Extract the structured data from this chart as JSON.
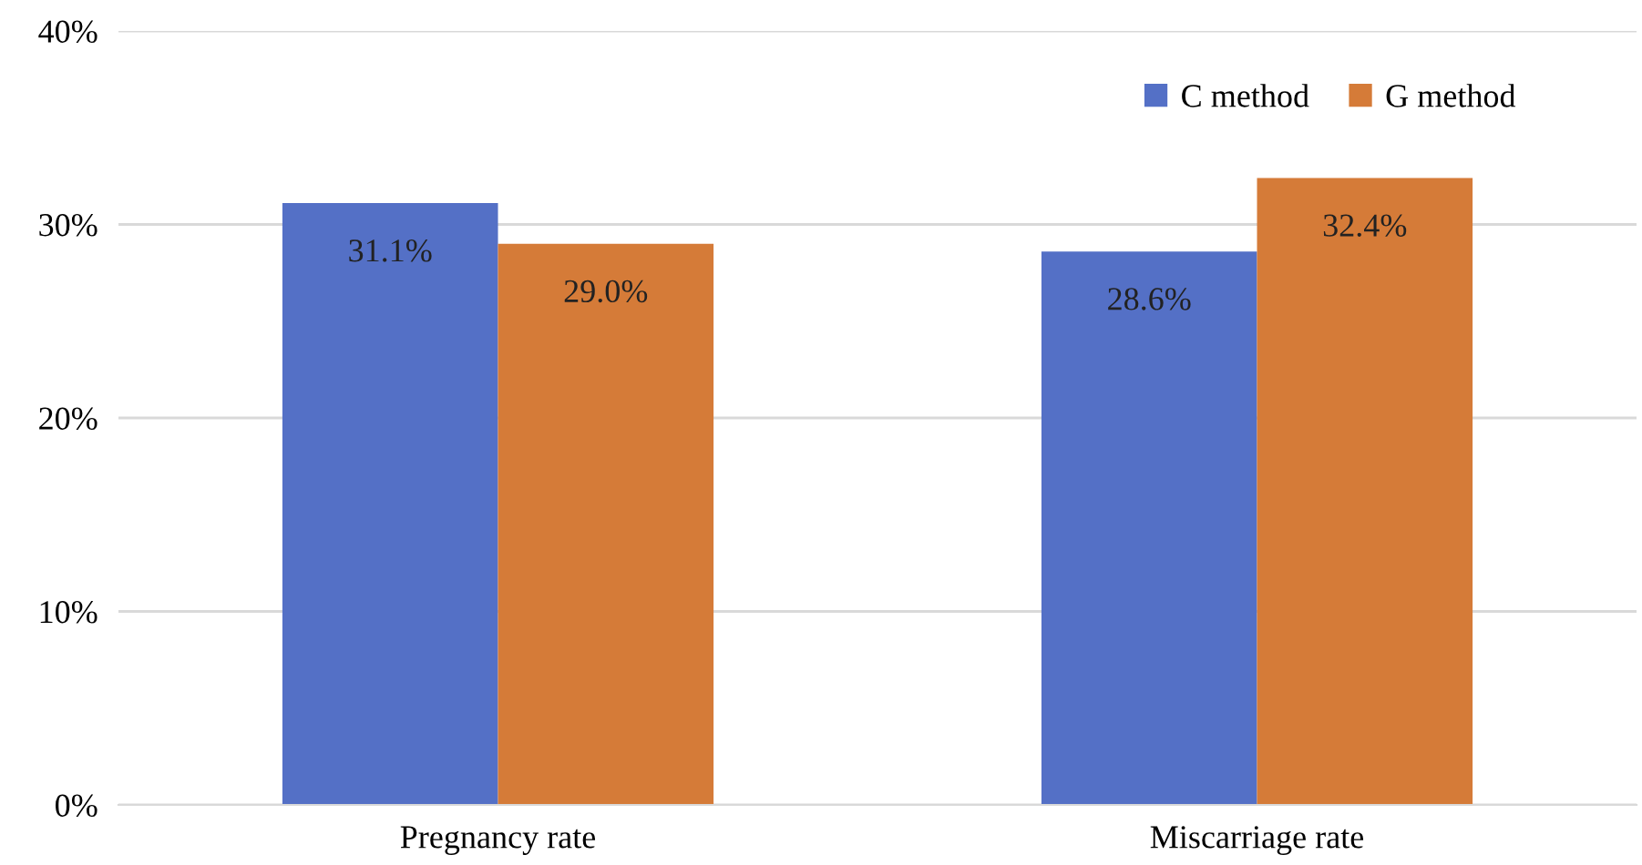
{
  "chart_data": {
    "type": "bar",
    "categories": [
      "Pregnancy rate",
      "Miscarriage rate"
    ],
    "series": [
      {
        "name": "C method",
        "color": "#5470c6",
        "values": [
          31.1,
          28.6
        ],
        "value_labels": [
          "31.1%",
          "28.6%"
        ]
      },
      {
        "name": "G method",
        "color": "#d57b38",
        "values": [
          29.0,
          32.4
        ],
        "value_labels": [
          "29.0%",
          "32.4%"
        ]
      }
    ],
    "ylim": [
      0,
      40
    ],
    "yticks": [
      {
        "value": 0,
        "label": "0%"
      },
      {
        "value": 10,
        "label": "10%"
      },
      {
        "value": 20,
        "label": "20%"
      },
      {
        "value": 30,
        "label": "30%"
      },
      {
        "value": 40,
        "label": "40%"
      }
    ],
    "grid": "y",
    "legend": "top right"
  }
}
